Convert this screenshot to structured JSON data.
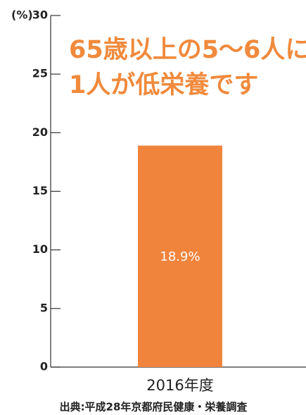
{
  "chart_data": {
    "type": "bar",
    "y_label": "(%)",
    "annotation": [
      "65歳以上の5〜6人に",
      "1人が低栄養です"
    ],
    "categories": [
      "2016年度"
    ],
    "values": [
      18.9
    ],
    "value_labels": [
      "18.9%"
    ],
    "color": "#f0843c",
    "ylim": [
      0,
      30
    ],
    "yticks": [
      0,
      5,
      10,
      15,
      20,
      25,
      30
    ],
    "source": "出典:平成28年京都府民健康・栄養調査"
  }
}
